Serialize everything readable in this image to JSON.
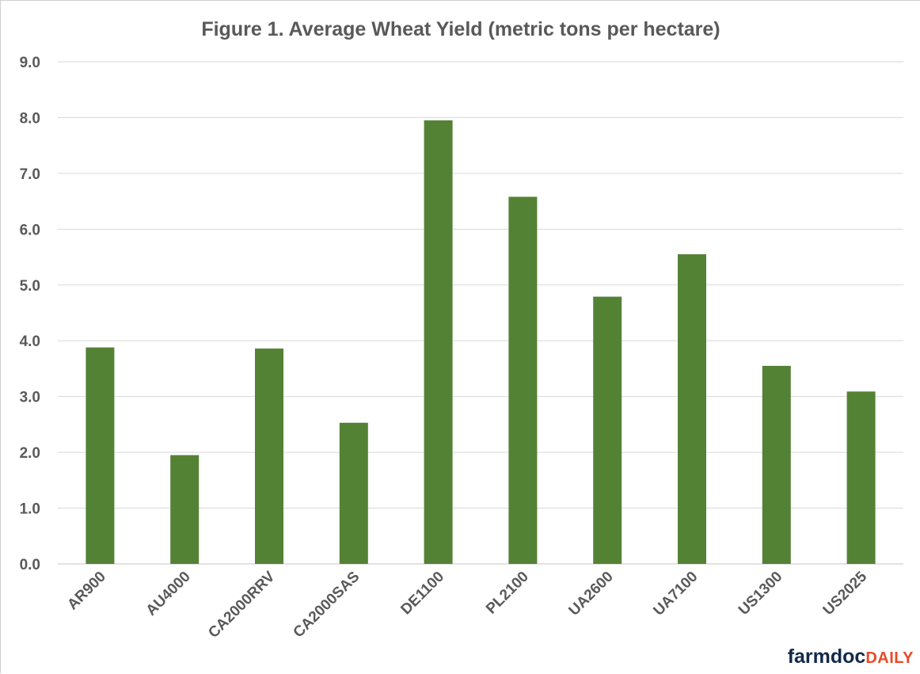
{
  "chart_data": {
    "type": "bar",
    "title": "Figure 1. Average Wheat Yield (metric tons per hectare)",
    "categories": [
      "AR900",
      "AU4000",
      "CA2000RRV",
      "CA2000SAS",
      "DE1100",
      "PL2100",
      "UA2600",
      "UA7100",
      "US1300",
      "US2025"
    ],
    "values": [
      3.88,
      1.95,
      3.86,
      2.53,
      7.95,
      6.58,
      4.79,
      5.55,
      3.55,
      3.09
    ],
    "xlabel": "",
    "ylabel": "",
    "ylim": [
      0,
      9
    ],
    "yticks": [
      "0.0",
      "1.0",
      "2.0",
      "3.0",
      "4.0",
      "5.0",
      "6.0",
      "7.0",
      "8.0",
      "9.0"
    ],
    "grid": true,
    "legend": "none",
    "bar_color": "#548235",
    "grid_color": "#d9d9d9"
  },
  "branding": {
    "part1": "farmdoc",
    "part2": "DAILY"
  }
}
